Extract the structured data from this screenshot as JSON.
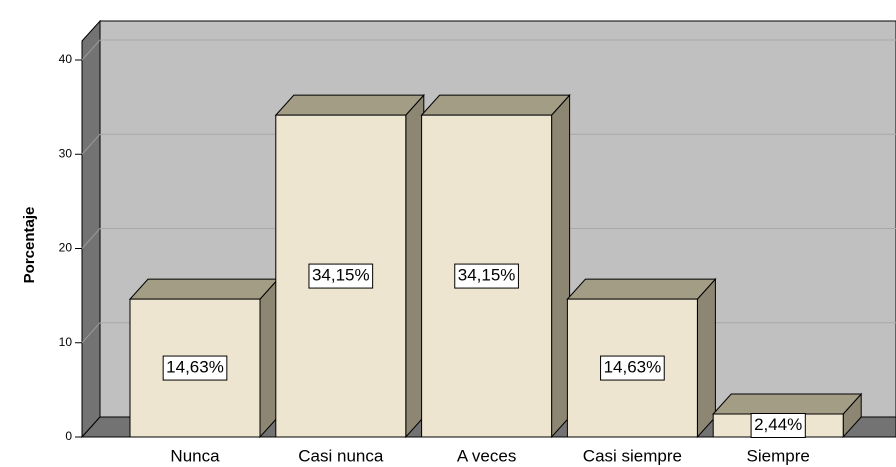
{
  "chart_data": {
    "type": "bar3d",
    "y_label": "Porcentaje",
    "categories": [
      "Nunca",
      "Casi nunca",
      "A veces",
      "Casi siempre",
      "Siempre"
    ],
    "values": [
      14.63,
      34.15,
      34.15,
      14.63,
      2.44
    ],
    "value_labels": [
      "14,63%",
      "34,15%",
      "34,15%",
      "14,63%",
      "2,44%"
    ],
    "color": "#ede5cf",
    "ylim": [
      0,
      42
    ],
    "yticks": [
      0,
      10,
      20,
      30,
      40
    ],
    "grid": true
  }
}
